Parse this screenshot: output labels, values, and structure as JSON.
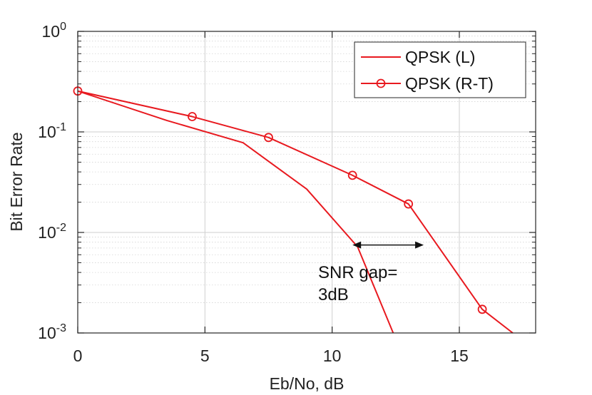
{
  "chart_data": {
    "type": "line",
    "title": "",
    "xlabel": "Eb/No, dB",
    "ylabel": "Bit Error Rate",
    "xlim": [
      0,
      18
    ],
    "ylim": [
      0.001,
      1
    ],
    "yscale": "log",
    "grid": true,
    "minor_grid": true,
    "x_ticks": [
      0,
      5,
      10,
      15
    ],
    "x_tick_labels": [
      "0",
      "5",
      "10",
      "15"
    ],
    "y_ticks": [
      {
        "value": 1,
        "base": "10",
        "exp": "0"
      },
      {
        "value": 0.1,
        "base": "10",
        "exp": "-1"
      },
      {
        "value": 0.01,
        "base": "10",
        "exp": "-2"
      },
      {
        "value": 0.001,
        "base": "10",
        "exp": "-3"
      }
    ],
    "series": [
      {
        "name": "QPSK (L)",
        "color": "#e8191f",
        "marker": "none",
        "x": [
          0,
          3.5,
          6.5,
          9,
          11,
          12.4
        ],
        "y": [
          0.255,
          0.13,
          0.078,
          0.027,
          0.0072,
          0.001
        ]
      },
      {
        "name": "QPSK (R-T)",
        "color": "#e8191f",
        "marker": "circle",
        "x": [
          0,
          4.5,
          7.5,
          10.8,
          13,
          15.9,
          17.1
        ],
        "y": [
          0.255,
          0.142,
          0.088,
          0.037,
          0.0192,
          0.00172,
          0.001
        ]
      }
    ],
    "legend": {
      "position": "top-right"
    },
    "annotation": {
      "line1": "SNR gap=",
      "line2": "3dB",
      "arrow_x": [
        10.8,
        13.6
      ],
      "arrow_y": 0.0075
    }
  }
}
